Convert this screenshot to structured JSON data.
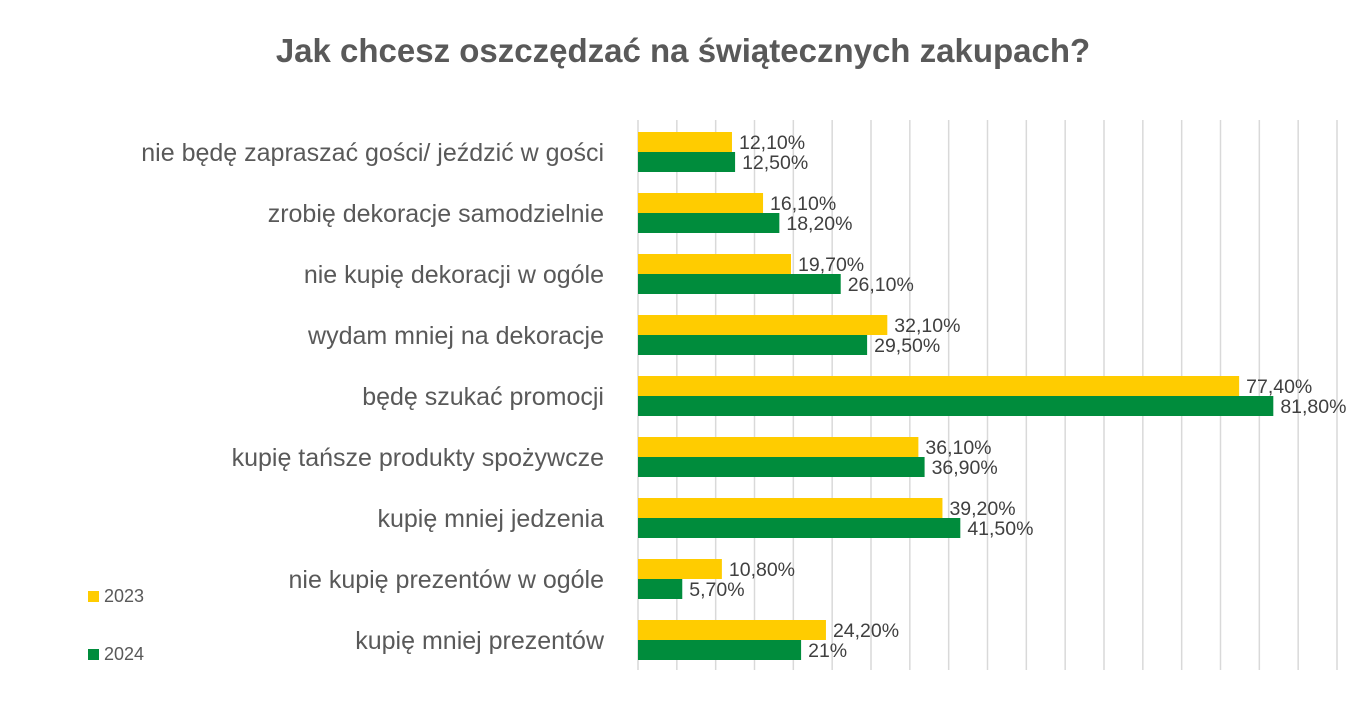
{
  "chart_data": {
    "type": "bar",
    "orientation": "horizontal",
    "title": "Jak chcesz oszczędzać na świątecznych zakupach?",
    "xlabel": "",
    "ylabel": "",
    "xlim": [
      0,
      90
    ],
    "grid": true,
    "legend_position": "bottom-left",
    "categories": [
      "nie będę zapraszać gości/ jeździć w gości",
      "zrobię dekoracje samodzielnie",
      "nie kupię dekoracji w ogóle",
      "wydam mniej na dekoracje",
      "będę szukać promocji",
      "kupię tańsze produkty spożywcze",
      "kupię mniej jedzenia",
      "nie kupię prezentów w ogóle",
      "kupię mniej prezentów"
    ],
    "series": [
      {
        "name": "2023",
        "color": "#FFCC00",
        "values": [
          12.1,
          16.1,
          19.7,
          32.1,
          77.4,
          36.1,
          39.2,
          10.8,
          24.2
        ],
        "labels": [
          "12,10%",
          "16,10%",
          "19,70%",
          "32,10%",
          "77,40%",
          "36,10%",
          "39,20%",
          "10,80%",
          "24,20%"
        ]
      },
      {
        "name": "2024",
        "color": "#008C3C",
        "values": [
          12.5,
          18.2,
          26.1,
          29.5,
          81.8,
          36.9,
          41.5,
          5.7,
          21
        ],
        "labels": [
          "12,50%",
          "18,20%",
          "26,10%",
          "29,50%",
          "81,80%",
          "36,90%",
          "41,50%",
          "5,70%",
          "21%"
        ]
      }
    ]
  }
}
